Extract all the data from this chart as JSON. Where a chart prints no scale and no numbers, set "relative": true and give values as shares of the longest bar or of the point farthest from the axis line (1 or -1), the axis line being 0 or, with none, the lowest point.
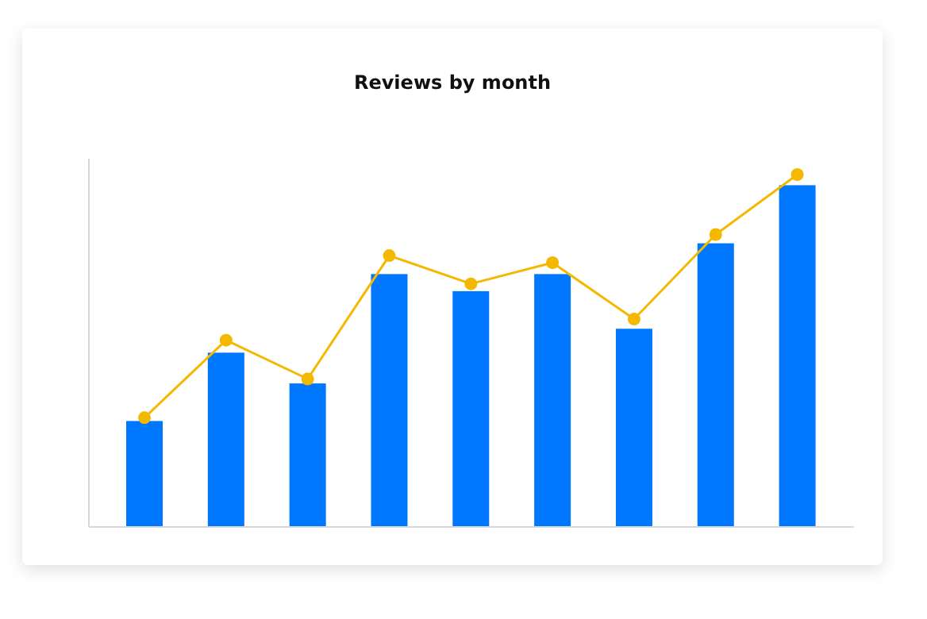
{
  "chart_data": [
    {
      "type": "bar",
      "title": "Reviews by month",
      "relative": true,
      "categories": [
        null,
        null,
        null,
        null,
        null,
        null,
        null,
        null,
        null
      ],
      "color": "#0077ff",
      "values": [
        0.31,
        0.51,
        0.42,
        0.74,
        0.69,
        0.74,
        0.58,
        0.83,
        1
      ]
    },
    {
      "type": "line",
      "relative": true,
      "categories": [
        null,
        null,
        null,
        null,
        null,
        null,
        null,
        null,
        null
      ],
      "marker": "circle",
      "color": "#f5b800",
      "values": [
        0.31,
        0.53,
        0.42,
        0.77,
        0.69,
        0.75,
        0.59,
        0.83,
        1
      ]
    }
  ]
}
